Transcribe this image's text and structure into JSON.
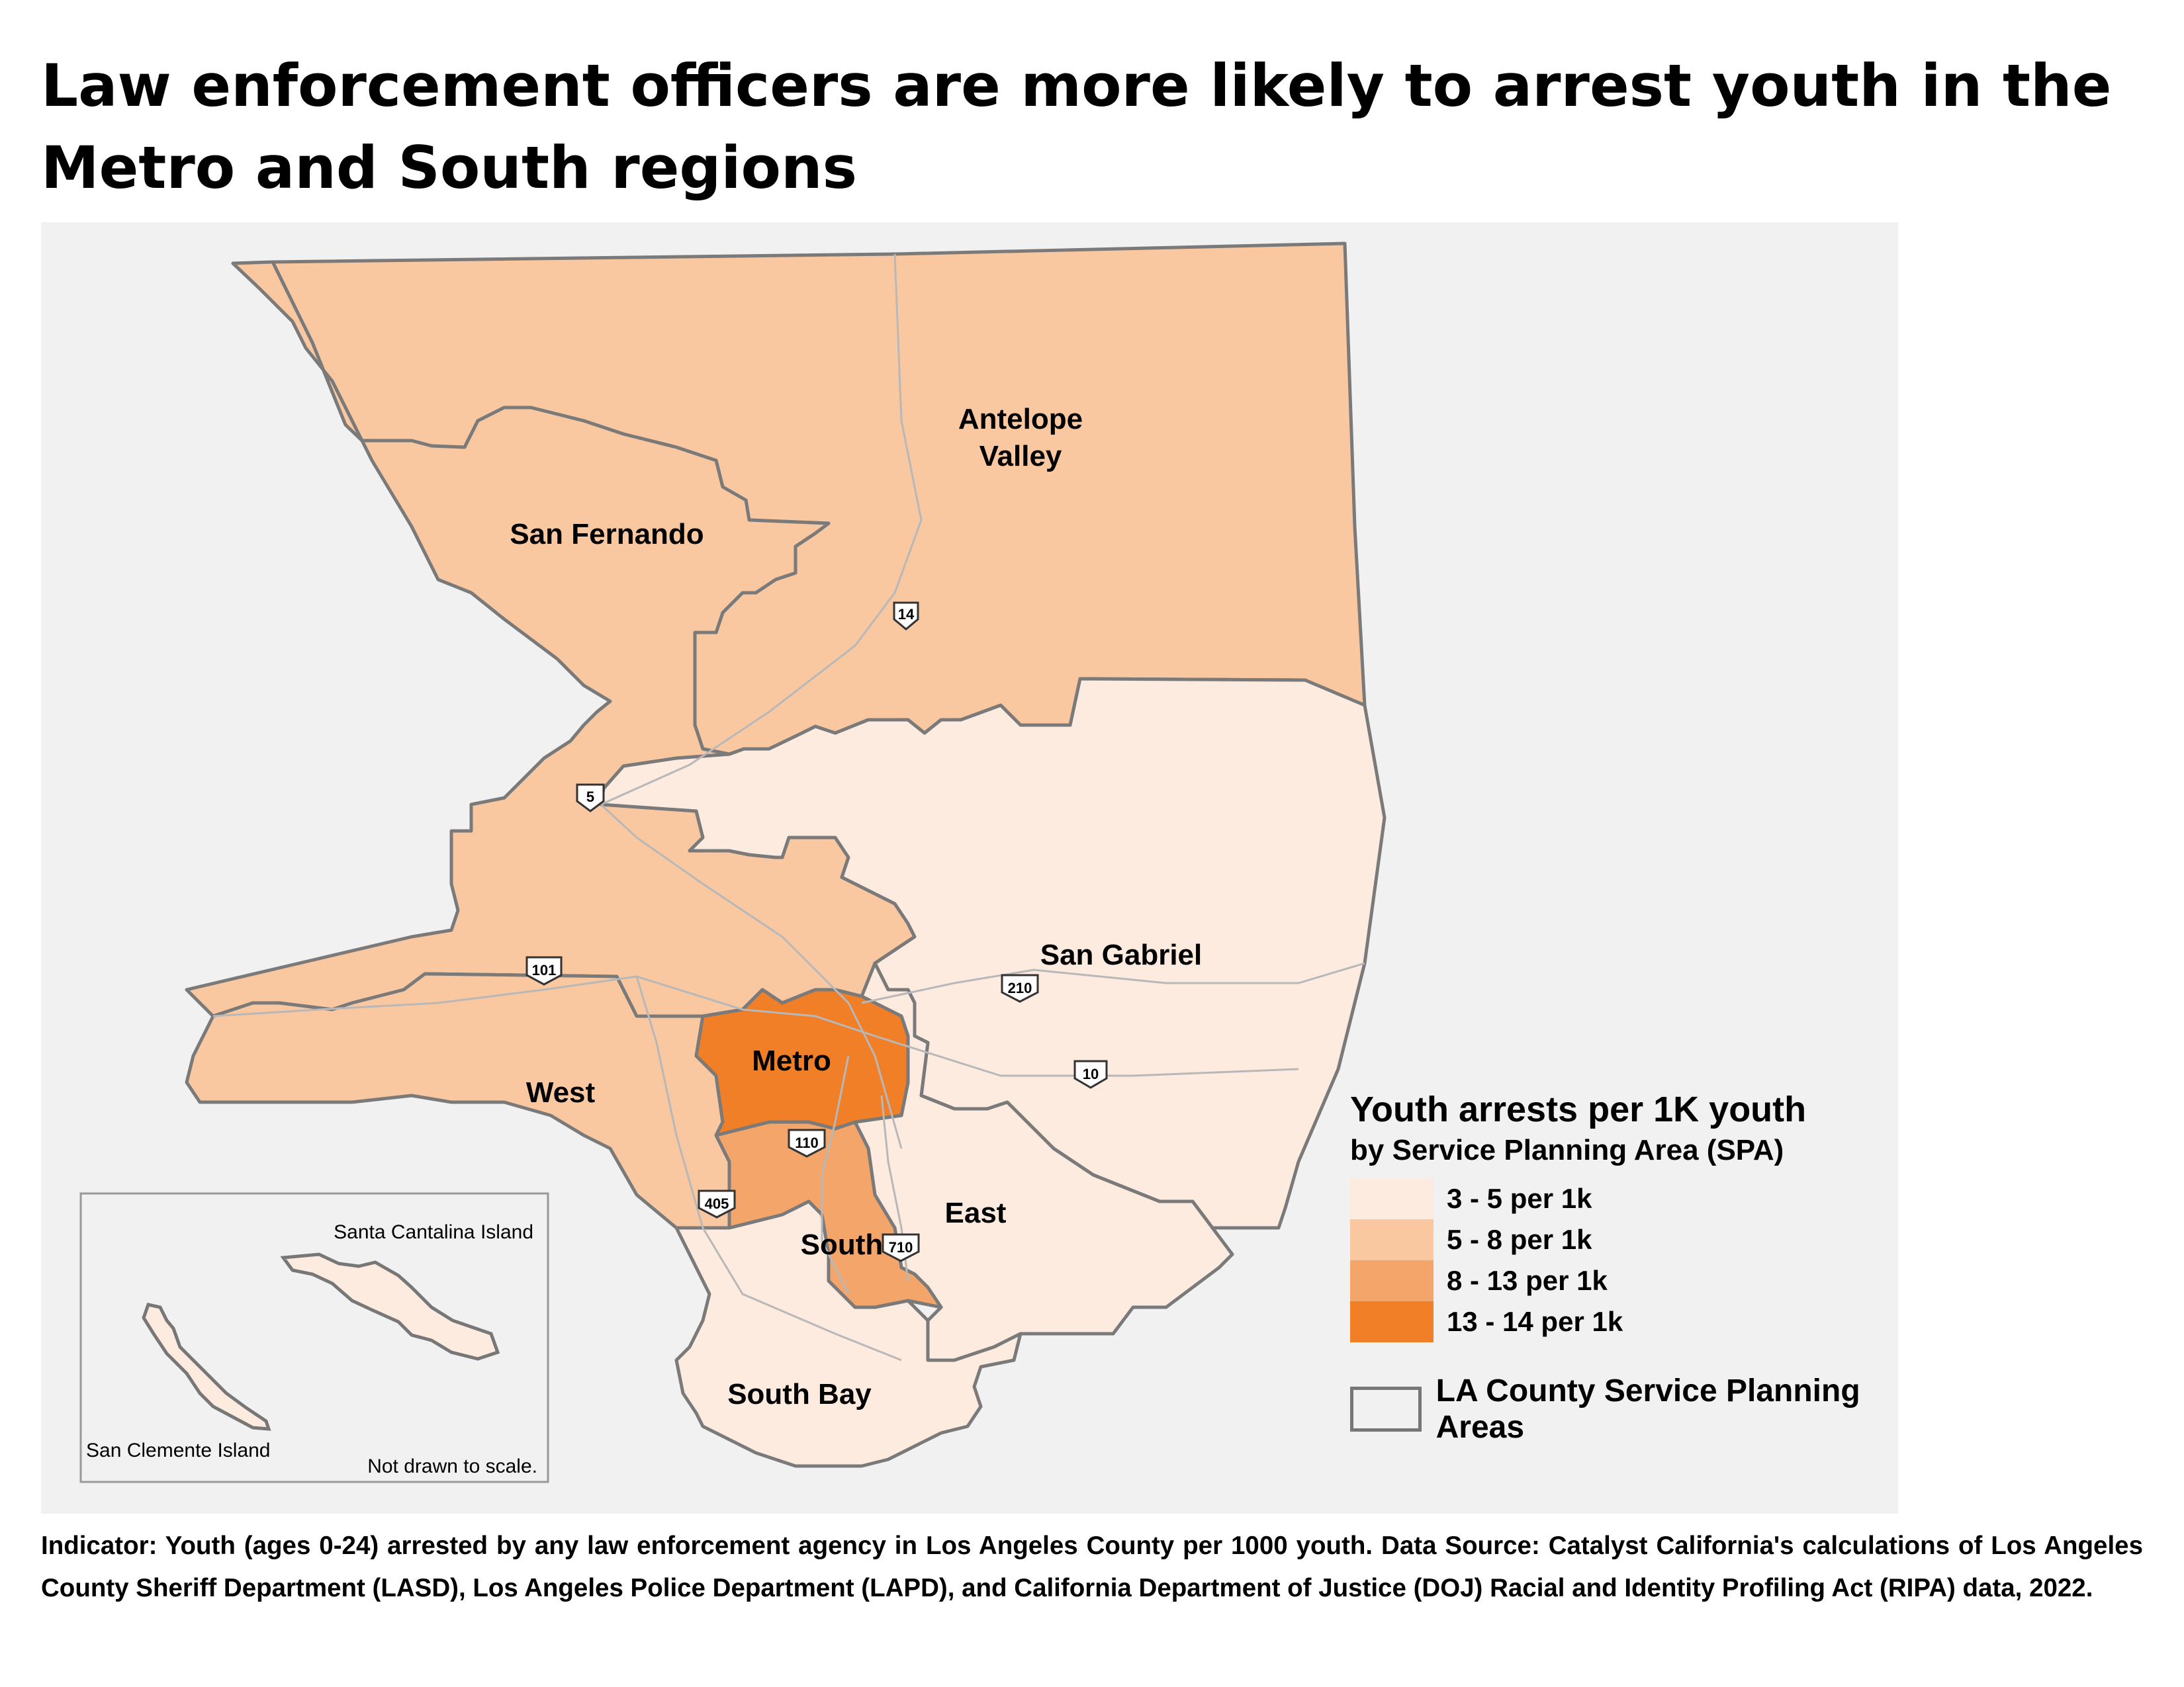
{
  "title": "Law enforcement officers are more likely to arrest youth in the Metro and South regions",
  "map": {
    "regions": [
      {
        "name": "Antelope Valley",
        "line1": "Antelope",
        "line2": "Valley",
        "rate_class": "5 - 8 per 1k",
        "color": "#f9c8a0"
      },
      {
        "name": "San Fernando",
        "rate_class": "5 - 8 per 1k",
        "color": "#f9c8a0"
      },
      {
        "name": "San Gabriel",
        "rate_class": "3 - 5 per 1k",
        "color": "#fdebe0"
      },
      {
        "name": "Metro",
        "rate_class": "13 - 14 per 1k",
        "color": "#f07f27"
      },
      {
        "name": "West",
        "rate_class": "5 - 8 per 1k",
        "color": "#f9c8a0"
      },
      {
        "name": "South",
        "rate_class": "8 - 13 per 1k",
        "color": "#f3a56a"
      },
      {
        "name": "East",
        "rate_class": "3 - 5 per 1k",
        "color": "#fdebe0"
      },
      {
        "name": "South Bay",
        "rate_class": "3 - 5 per 1k",
        "color": "#fdebe0"
      }
    ],
    "highways": [
      "14",
      "5",
      "101",
      "210",
      "10",
      "110",
      "405",
      "710"
    ],
    "inset": {
      "island1": "Santa Cantalina Island",
      "island2": "San Clemente Island",
      "note": "Not drawn to scale."
    }
  },
  "legend": {
    "title": "Youth arrests per 1K youth",
    "subtitle": "by Service Planning Area (SPA)",
    "items": [
      {
        "label": "3 - 5 per 1k",
        "color": "#fdebe0"
      },
      {
        "label": "5 - 8 per 1k",
        "color": "#f9c8a0"
      },
      {
        "label": "8 - 13 per 1k",
        "color": "#f3a56a"
      },
      {
        "label": "13 - 14 per 1k",
        "color": "#f07f27"
      }
    ],
    "boundary_label": "LA County Service Planning Areas"
  },
  "footer": "Indicator: Youth (ages 0-24) arrested by any law enforcement agency in Los Angeles County per 1000 youth. Data Source: Catalyst California's calculations of Los Angeles County Sheriff Department (LASD), Los Angeles Police Department (LAPD), and California Department of Justice (DOJ) Racial and Identity Profiling Act (RIPA) data, 2022."
}
